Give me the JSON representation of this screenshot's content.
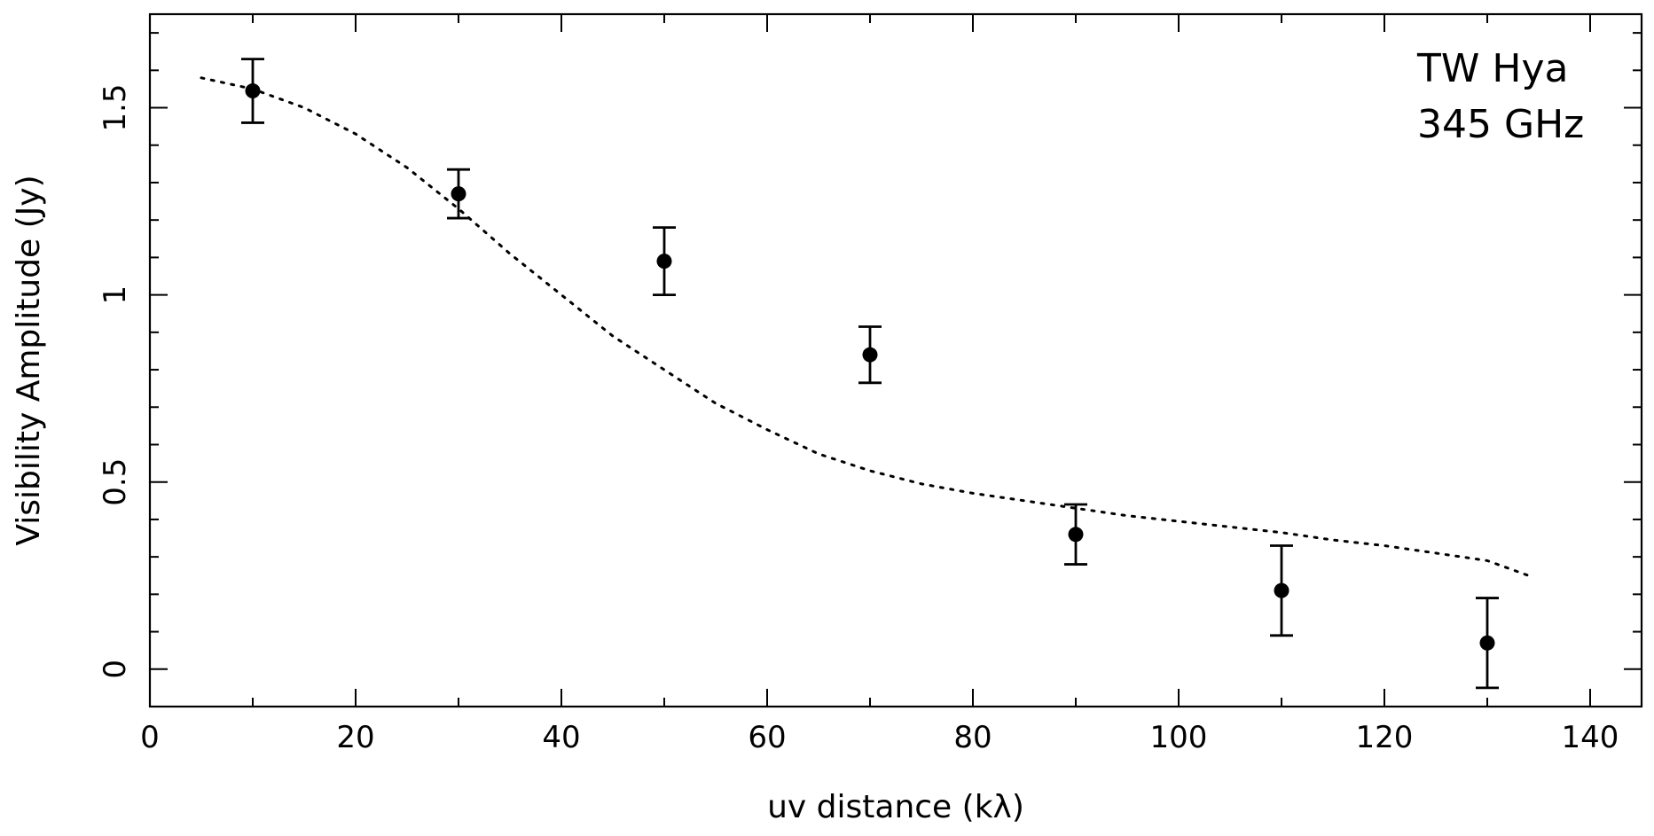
{
  "chart_data": {
    "type": "scatter",
    "annotations": [
      "TW Hya",
      "345 GHz"
    ],
    "xlabel": "uv distance (kλ)",
    "ylabel": "Visibility Amplitude (Jy)",
    "xlim": [
      0,
      145
    ],
    "ylim": [
      -0.1,
      1.75
    ],
    "x_ticks": [
      0,
      20,
      40,
      60,
      80,
      100,
      120,
      140
    ],
    "x_tick_labels": [
      "0",
      "20",
      "40",
      "60",
      "80",
      "100",
      "120",
      "140"
    ],
    "y_ticks": [
      0,
      0.5,
      1,
      1.5
    ],
    "y_tick_labels": [
      "0",
      "0.5",
      "1",
      "1.5"
    ],
    "x_minor_step": 10,
    "y_minor_step": 0.1,
    "grid": false,
    "legend": "none",
    "series": [
      {
        "style": "points-with-errorbars",
        "x": [
          10,
          30,
          50,
          70,
          90,
          110,
          130
        ],
        "y": [
          1.545,
          1.27,
          1.09,
          0.84,
          0.36,
          0.21,
          0.07
        ],
        "yerr": [
          0.085,
          0.065,
          0.09,
          0.075,
          0.08,
          0.12,
          0.12
        ]
      },
      {
        "style": "dotted-line",
        "x": [
          5,
          10,
          15,
          20,
          25,
          30,
          35,
          40,
          45,
          50,
          55,
          60,
          65,
          70,
          75,
          80,
          85,
          90,
          95,
          100,
          105,
          110,
          115,
          120,
          125,
          130,
          134
        ],
        "y": [
          1.58,
          1.55,
          1.5,
          1.43,
          1.34,
          1.23,
          1.11,
          1.0,
          0.89,
          0.8,
          0.71,
          0.64,
          0.575,
          0.53,
          0.495,
          0.47,
          0.45,
          0.43,
          0.41,
          0.395,
          0.38,
          0.365,
          0.345,
          0.33,
          0.31,
          0.29,
          0.25
        ]
      }
    ]
  }
}
